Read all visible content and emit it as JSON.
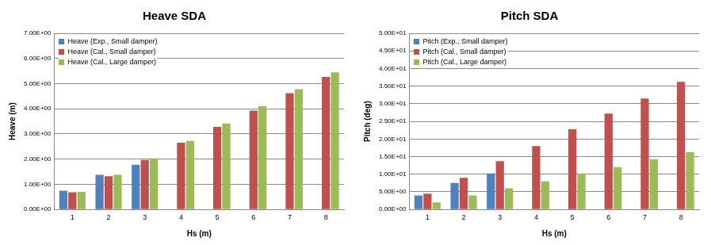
{
  "chart_data": [
    {
      "type": "bar",
      "title": "Heave SDA",
      "x_label": "Hs (m)",
      "y_label": "Heave (m)",
      "categories": [
        1,
        2,
        3,
        4,
        5,
        6,
        7,
        8
      ],
      "series": [
        {
          "name": "Heave (Exp., Small damper)",
          "color": "#4f81bd",
          "values": [
            0.75,
            1.38,
            1.78,
            null,
            null,
            null,
            null,
            null
          ]
        },
        {
          "name": "Heave (Cal., Small damper)",
          "color": "#c0504d",
          "values": [
            0.68,
            1.32,
            1.97,
            2.65,
            3.28,
            3.93,
            4.62,
            5.27
          ]
        },
        {
          "name": "Heave (Cal., Large damper)",
          "color": "#9bbb59",
          "values": [
            0.7,
            1.38,
            2.03,
            2.72,
            3.42,
            4.1,
            4.78,
            5.45
          ]
        }
      ],
      "ylim": [
        0,
        7
      ],
      "yticks": [
        {
          "value": 0,
          "label": "0.00E+00"
        },
        {
          "value": 1,
          "label": "1.00E+00"
        },
        {
          "value": 2,
          "label": "2.00E+00"
        },
        {
          "value": 3,
          "label": "3.00E+00"
        },
        {
          "value": 4,
          "label": "4.00E+00"
        },
        {
          "value": 5,
          "label": "5.00E+00"
        },
        {
          "value": 6,
          "label": "6.00E+00"
        },
        {
          "value": 7,
          "label": "7.00E+00"
        }
      ],
      "grid": true,
      "legend": "upper left"
    },
    {
      "type": "bar",
      "title": "Pitch SDA",
      "x_label": "Hs (m)",
      "y_label": "Pitch (deg)",
      "categories": [
        1,
        2,
        3,
        4,
        5,
        6,
        7,
        8
      ],
      "series": [
        {
          "name": "Pitch (Exp., Small damper)",
          "color": "#4f81bd",
          "values": [
            4.0,
            7.5,
            10.2,
            null,
            null,
            null,
            null,
            null
          ]
        },
        {
          "name": "Pitch (Cal., Small damper)",
          "color": "#c0504d",
          "values": [
            4.5,
            9.0,
            13.7,
            18.0,
            22.8,
            27.2,
            31.5,
            36.2
          ]
        },
        {
          "name": "Pitch (Cal., Large damper)",
          "color": "#9bbb59",
          "values": [
            2.0,
            4.0,
            6.0,
            8.0,
            10.2,
            12.0,
            14.3,
            16.3
          ]
        }
      ],
      "ylim": [
        0,
        50
      ],
      "yticks": [
        {
          "value": 0,
          "label": "0.00E+00"
        },
        {
          "value": 5,
          "label": "5.00E+00"
        },
        {
          "value": 10,
          "label": "1.00E+01"
        },
        {
          "value": 15,
          "label": "1.50E+01"
        },
        {
          "value": 20,
          "label": "2.00E+01"
        },
        {
          "value": 25,
          "label": "2.50E+01"
        },
        {
          "value": 30,
          "label": "3.00E+01"
        },
        {
          "value": 35,
          "label": "3.50E+01"
        },
        {
          "value": 40,
          "label": "4.00E+01"
        },
        {
          "value": 45,
          "label": "4.50E+01"
        },
        {
          "value": 50,
          "label": "5.00E+01"
        }
      ],
      "grid": true,
      "legend": "upper left"
    }
  ]
}
